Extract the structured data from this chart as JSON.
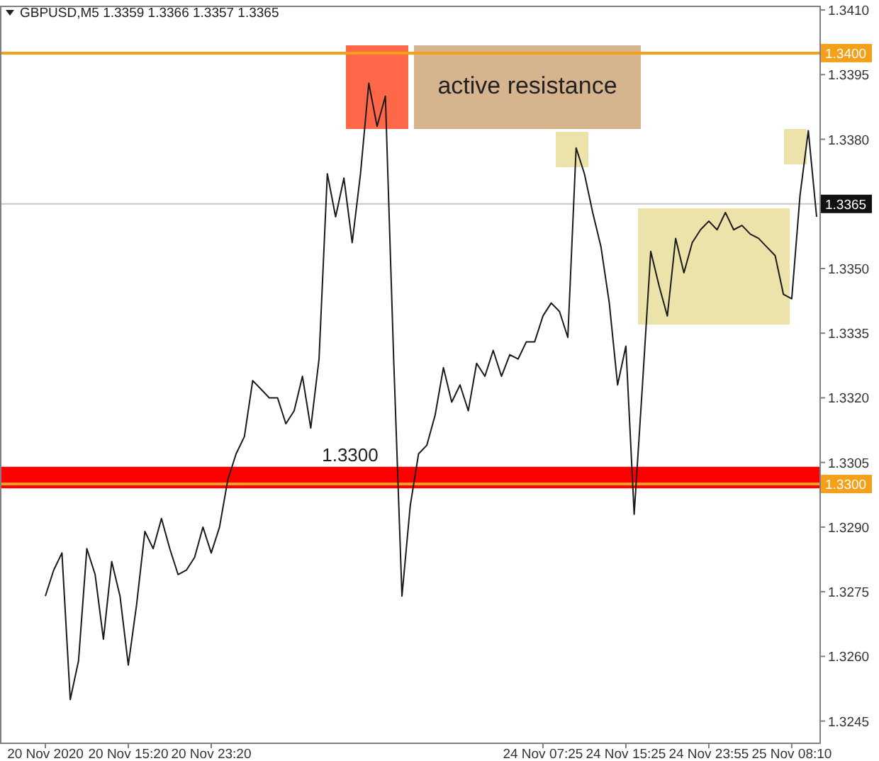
{
  "chart_data": {
    "type": "line",
    "title": "GBPUSD,M5 1.3359 1.3366 1.3357 1.3365",
    "categories": [
      "20 Nov 2020",
      null,
      null,
      null,
      null,
      null,
      null,
      null,
      null,
      null,
      "20 Nov 15:20",
      null,
      null,
      null,
      null,
      null,
      null,
      null,
      null,
      null,
      "20 Nov 23:20",
      null,
      null,
      null,
      null,
      null,
      null,
      null,
      null,
      null,
      null,
      null,
      null,
      null,
      null,
      null,
      null,
      null,
      null,
      null,
      null,
      null,
      null,
      null,
      null,
      null,
      null,
      null,
      null,
      null,
      null,
      null,
      null,
      null,
      null,
      null,
      null,
      null,
      null,
      null,
      "24 Nov 07:25",
      null,
      null,
      null,
      null,
      null,
      null,
      null,
      null,
      null,
      "24 Nov 15:25",
      null,
      null,
      null,
      null,
      null,
      null,
      null,
      null,
      null,
      "24 Nov 23:55",
      null,
      null,
      null,
      null,
      null,
      null,
      null,
      null,
      null,
      "25 Nov 08:10",
      null,
      null,
      null
    ],
    "series": [
      {
        "color": "#1a1a1a",
        "values": [
          1.3274,
          1.328,
          1.3284,
          1.325,
          1.3259,
          1.3285,
          1.3279,
          1.3264,
          1.3282,
          1.3274,
          1.3258,
          1.3272,
          1.3289,
          1.3285,
          1.3292,
          1.3285,
          1.3279,
          1.328,
          1.3283,
          1.329,
          1.3284,
          1.329,
          1.3301,
          1.3307,
          1.3311,
          1.3324,
          1.3322,
          1.332,
          1.332,
          1.3314,
          1.3317,
          1.3325,
          1.3313,
          1.3329,
          1.3372,
          1.3362,
          1.3371,
          1.3356,
          1.3372,
          1.3393,
          1.3383,
          1.339,
          1.3329,
          1.3274,
          1.3295,
          1.3307,
          1.3309,
          1.3316,
          1.3327,
          1.3319,
          1.3323,
          1.3317,
          1.3328,
          1.3325,
          1.3331,
          1.3325,
          1.333,
          1.3329,
          1.3333,
          1.3333,
          1.3339,
          1.3342,
          1.334,
          1.3334,
          1.3378,
          1.3372,
          1.3363,
          1.3355,
          1.3342,
          1.3323,
          1.3332,
          1.3293,
          1.3323,
          1.3354,
          1.3346,
          1.3339,
          1.3357,
          1.3349,
          1.3356,
          1.3359,
          1.3361,
          1.3359,
          1.3363,
          1.3359,
          1.336,
          1.3358,
          1.3357,
          1.3355,
          1.3353,
          1.3344,
          1.3343,
          1.3367,
          1.3382,
          1.3362
        ]
      }
    ],
    "ylim": [
      1.324,
      1.3411
    ],
    "yticks": [
      {
        "value": 1.341,
        "label": "1.3410"
      },
      1.3395,
      {
        "value": 1.338,
        "label": "1.3380"
      },
      {
        "value": 1.3365,
        "label": null
      },
      {
        "value": 1.335,
        "label": "1.3350"
      },
      1.3335,
      {
        "value": 1.332,
        "label": "1.3320"
      },
      1.3305,
      {
        "value": 1.329,
        "label": "1.3290"
      },
      1.3275,
      {
        "value": 1.326,
        "label": "1.3260"
      },
      1.3245
    ],
    "ref_lines": [
      {
        "axis": "y",
        "value": 1.34,
        "label": "1.3400",
        "color": "#f5a01a"
      },
      {
        "axis": "y",
        "value": 1.33,
        "label": "1.3300",
        "color": "#f5a01a"
      },
      {
        "axis": "y",
        "value": 1.3365,
        "label": "1.3365",
        "color": "#c8c8c8"
      }
    ],
    "bands": [
      {
        "axis": "y",
        "from": 1.3299,
        "to": 1.3304,
        "label": "1.3300",
        "color": "#ff0000"
      }
    ],
    "annotations": [
      "active resistance"
    ],
    "grid": false
  }
}
